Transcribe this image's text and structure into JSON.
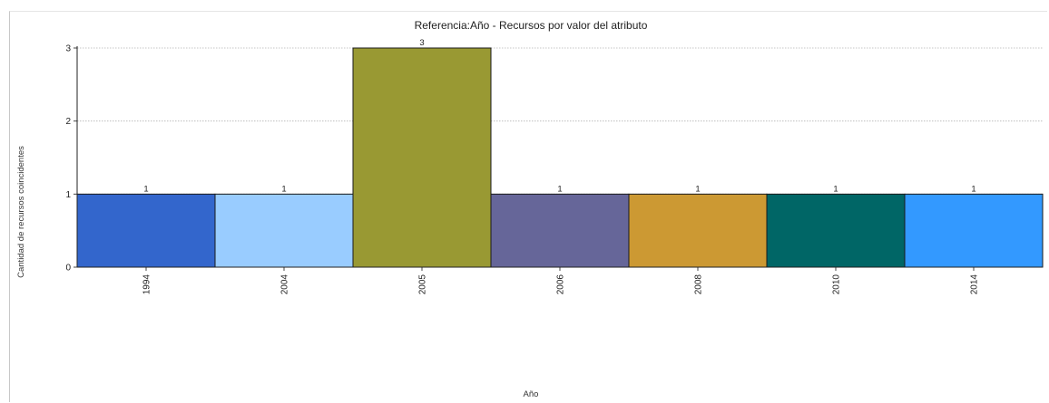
{
  "chart_data": {
    "type": "bar",
    "title": "Referencia:Año - Recursos por valor del atributo",
    "xlabel": "Año",
    "ylabel": "Cantidad de recursos coincidentes",
    "categories": [
      "1994",
      "2004",
      "2005",
      "2006",
      "2008",
      "2010",
      "2014"
    ],
    "values": [
      1,
      1,
      3,
      1,
      1,
      1,
      1
    ],
    "data_labels": [
      "1",
      "1",
      "3",
      "1",
      "1",
      "1",
      "1"
    ],
    "colors": [
      "#3366cc",
      "#99ccff",
      "#999933",
      "#666699",
      "#cc9933",
      "#006666",
      "#3399ff"
    ],
    "ylim": [
      0,
      3
    ],
    "yticks": [
      "0",
      "1",
      "2",
      "3"
    ],
    "grid": true,
    "legend": "none"
  }
}
